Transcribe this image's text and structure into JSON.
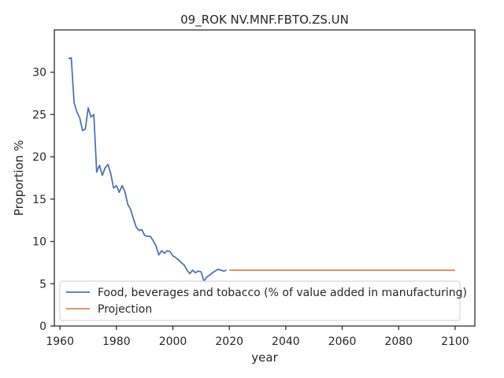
{
  "chart_data": {
    "type": "line",
    "title": "09_ROK NV.MNF.FBTO.ZS.UN",
    "xlabel": "year",
    "ylabel": "Proportion %",
    "xlim": [
      1958,
      2107
    ],
    "ylim": [
      0,
      35
    ],
    "xticks": [
      1960,
      1980,
      2000,
      2020,
      2040,
      2060,
      2080,
      2100
    ],
    "yticks": [
      0,
      5,
      10,
      15,
      20,
      25,
      30
    ],
    "grid": false,
    "legend_placement": "lower-left",
    "series": [
      {
        "name": "Food, beverages and tobacco (% of value added in manufacturing)",
        "color": "#4c72b0",
        "x": [
          1963,
          1964,
          1965,
          1966,
          1967,
          1968,
          1969,
          1970,
          1971,
          1972,
          1973,
          1974,
          1975,
          1976,
          1977,
          1978,
          1979,
          1980,
          1981,
          1982,
          1983,
          1984,
          1985,
          1986,
          1987,
          1988,
          1989,
          1990,
          1991,
          1992,
          1993,
          1994,
          1995,
          1996,
          1997,
          1998,
          1999,
          2000,
          2001,
          2002,
          2003,
          2004,
          2005,
          2006,
          2007,
          2008,
          2009,
          2010,
          2011,
          2012,
          2013,
          2014,
          2015,
          2016,
          2017,
          2018,
          2019
        ],
        "y": [
          31.6,
          31.7,
          26.4,
          25.3,
          24.6,
          23.1,
          23.3,
          25.8,
          24.7,
          25.0,
          18.2,
          19.0,
          17.8,
          18.7,
          19.1,
          18.0,
          16.3,
          16.6,
          15.8,
          16.6,
          15.9,
          14.4,
          13.8,
          12.7,
          11.7,
          11.3,
          11.4,
          10.7,
          10.6,
          10.6,
          10.1,
          9.5,
          8.4,
          8.9,
          8.6,
          8.9,
          8.8,
          8.3,
          8.1,
          7.8,
          7.5,
          7.2,
          6.6,
          6.2,
          6.6,
          6.3,
          6.5,
          6.4,
          5.3,
          5.8,
          6.0,
          6.3,
          6.5,
          6.7,
          6.6,
          6.5,
          6.6
        ]
      },
      {
        "name": "Projection",
        "color": "#dd8452",
        "x": [
          2020,
          2100
        ],
        "y": [
          6.6,
          6.6
        ]
      }
    ]
  }
}
